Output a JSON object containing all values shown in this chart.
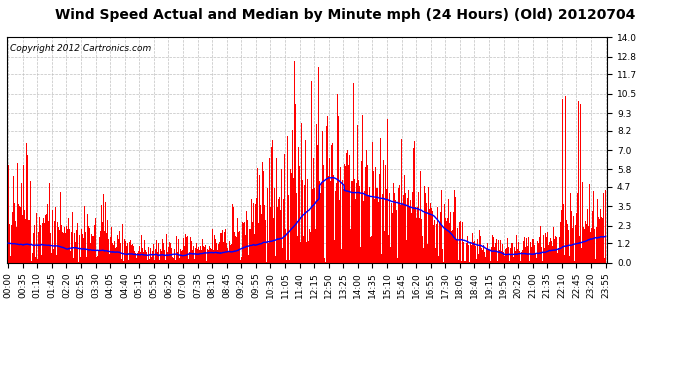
{
  "title": "Wind Speed Actual and Median by Minute mph (24 Hours) (Old) 20120704",
  "copyright": "Copyright 2012 Cartronics.com",
  "yticks": [
    0.0,
    1.2,
    2.3,
    3.5,
    4.7,
    5.8,
    7.0,
    8.2,
    9.3,
    10.5,
    11.7,
    12.8,
    14.0
  ],
  "ymax": 14.0,
  "ymin": 0.0,
  "bar_color": "#FF0000",
  "line_color": "#0000FF",
  "background_color": "#FFFFFF",
  "grid_color": "#C0C0C0",
  "title_fontsize": 10,
  "copyright_fontsize": 6.5,
  "tick_fontsize": 6.5,
  "xtick_labels": [
    "00:00",
    "00:35",
    "01:10",
    "01:45",
    "02:20",
    "02:55",
    "03:30",
    "04:05",
    "04:40",
    "05:15",
    "05:50",
    "06:25",
    "07:00",
    "07:35",
    "08:10",
    "08:45",
    "09:20",
    "09:55",
    "10:30",
    "11:05",
    "11:40",
    "12:15",
    "12:50",
    "13:25",
    "14:00",
    "14:35",
    "15:10",
    "15:45",
    "16:20",
    "16:55",
    "17:30",
    "18:05",
    "18:40",
    "19:15",
    "19:50",
    "20:25",
    "21:00",
    "21:35",
    "22:10",
    "22:45",
    "23:20",
    "23:55"
  ]
}
